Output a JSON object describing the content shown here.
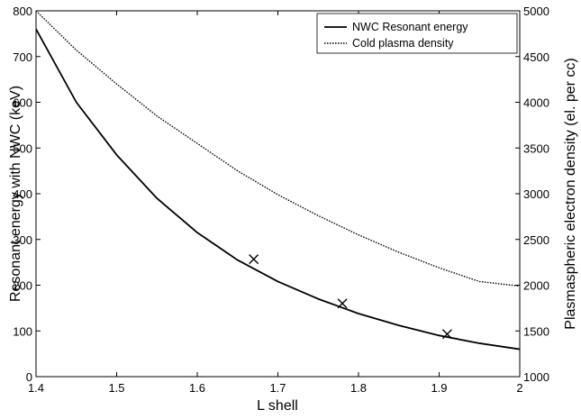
{
  "chart_data": {
    "type": "line",
    "xlabel": "L shell",
    "ylabel_left": "Resonant energy with NWC (keV)",
    "ylabel_right": "Plasmaspheric electron density (el. per cc)",
    "xlim": [
      1.4,
      2
    ],
    "ylim_left": [
      0,
      800
    ],
    "ylim_right": [
      1000,
      5000
    ],
    "x_ticks": [
      "1.4",
      "1.5",
      "1.6",
      "1.7",
      "1.8",
      "1.9",
      "2"
    ],
    "y_left_ticks": [
      "0",
      "100",
      "200",
      "300",
      "400",
      "500",
      "600",
      "700",
      "800"
    ],
    "y_right_ticks": [
      "1000",
      "1500",
      "2000",
      "2500",
      "3000",
      "3500",
      "4000",
      "4500",
      "5000"
    ],
    "grid": false,
    "legend_position": "top-right",
    "series": [
      {
        "name": "NWC Resonant energy",
        "axis": "left",
        "style": "solid",
        "x": [
          1.4,
          1.45,
          1.5,
          1.55,
          1.6,
          1.65,
          1.7,
          1.75,
          1.8,
          1.85,
          1.9,
          1.95,
          2.0
        ],
        "y": [
          760,
          600,
          485,
          390,
          315,
          255,
          208,
          170,
          138,
          112,
          90,
          73,
          60
        ]
      },
      {
        "name": "Cold plasma density",
        "axis": "right",
        "style": "dotted",
        "x": [
          1.4,
          1.45,
          1.5,
          1.55,
          1.6,
          1.65,
          1.7,
          1.75,
          1.8,
          1.85,
          1.9,
          1.95,
          2.0
        ],
        "y": [
          5000,
          4570,
          4200,
          3850,
          3550,
          3250,
          2990,
          2760,
          2550,
          2360,
          2190,
          2040,
          1990
        ]
      }
    ],
    "markers": {
      "symbol": "x",
      "axis": "left",
      "x": [
        1.67,
        1.78,
        1.91
      ],
      "y": [
        257,
        160,
        93
      ]
    }
  }
}
